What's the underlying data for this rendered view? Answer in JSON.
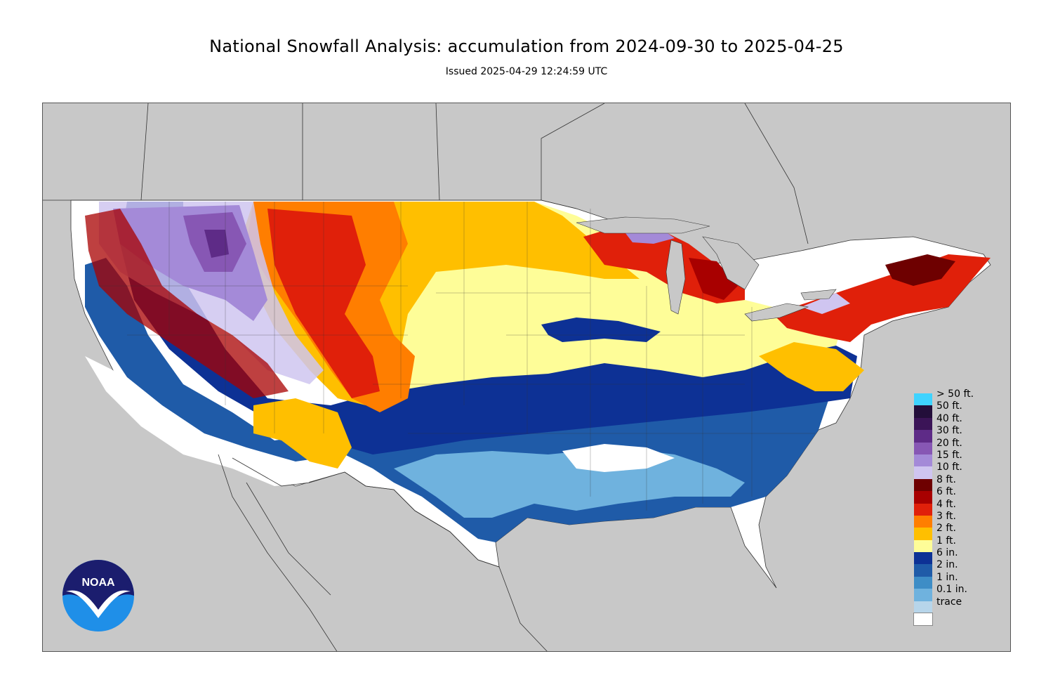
{
  "header": {
    "title": "National Snowfall Analysis: accumulation from 2024-09-30 to 2025-04-25",
    "subtitle": "Issued 2025-04-29 12:24:59 UTC"
  },
  "logo": {
    "text": "NOAA"
  },
  "colors": {
    "background": "#ffffff",
    "ocean_land_outside": "#c8c8c8"
  },
  "legend": [
    {
      "label": "> 50 ft.",
      "color": "#3fd3ff"
    },
    {
      "label": "50 ft.",
      "color": "#230e3a"
    },
    {
      "label": "40 ft.",
      "color": "#3b1457"
    },
    {
      "label": "30 ft.",
      "color": "#5e2b87"
    },
    {
      "label": "20 ft.",
      "color": "#8757b4"
    },
    {
      "label": "15 ft.",
      "color": "#a48ad8"
    },
    {
      "label": "10 ft.",
      "color": "#cfc5f0"
    },
    {
      "label": "8 ft.",
      "color": "#6e0000"
    },
    {
      "label": "6 ft.",
      "color": "#a80000"
    },
    {
      "label": "4 ft.",
      "color": "#e0200a"
    },
    {
      "label": "3 ft.",
      "color": "#ff7e00"
    },
    {
      "label": "2 ft.",
      "color": "#ffbf00"
    },
    {
      "label": "1 ft.",
      "color": "#fefd98"
    },
    {
      "label": "6 in.",
      "color": "#0d3195"
    },
    {
      "label": "2 in.",
      "color": "#1f5ba8"
    },
    {
      "label": "1 in.",
      "color": "#3e8dc6"
    },
    {
      "label": "0.1 in.",
      "color": "#6fb2de"
    },
    {
      "label": "trace",
      "color": "#b7d5ea"
    },
    {
      "label": "",
      "color": "#ffffff"
    }
  ]
}
